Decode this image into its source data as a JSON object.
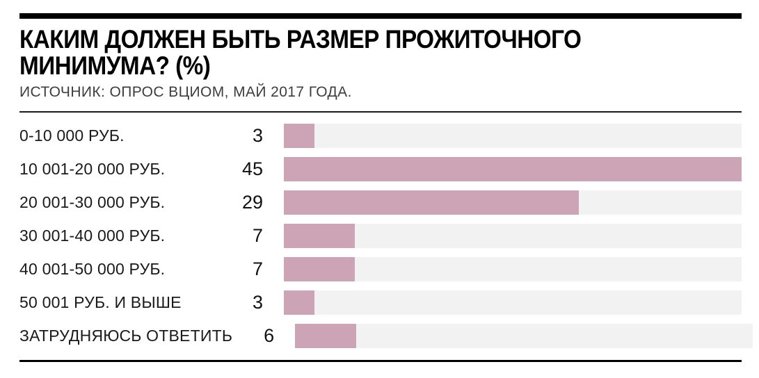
{
  "page": {
    "background": "#ffffff"
  },
  "header": {
    "title_line1": "КАКИМ ДОЛЖЕН БЫТЬ РАЗМЕР ПРОЖИТОЧНОГО",
    "title_line2": "МИНИМУМА? (%)",
    "source": "ИСТОЧНИК: ОПРОС ВЦИОМ, МАЙ 2017 ГОДА."
  },
  "chart_data": {
    "type": "bar",
    "orientation": "horizontal",
    "title": "КАКИМ ДОЛЖЕН БЫТЬ РАЗМЕР ПРОЖИТОЧНОГО МИНИМУМА? (%)",
    "subtitle": "ИСТОЧНИК: ОПРОС ВЦИОМ, МАЙ 2017 ГОДА.",
    "unit": "%",
    "categories": [
      "0-10 000 РУБ.",
      "10 001-20 000 РУБ.",
      "20 001-30 000 РУБ.",
      "30 001-40 000 РУБ.",
      "40 001-50 000 РУБ.",
      "50 001 РУБ. И ВЫШЕ",
      "ЗАТРУДНЯЮСЬ ОТВЕТИТЬ"
    ],
    "values": [
      3,
      45,
      29,
      7,
      7,
      3,
      6
    ],
    "xlim": [
      0,
      45
    ],
    "grid": false,
    "legend": false,
    "value_label_position": "left-of-bar",
    "bar_color": "#cda4b5",
    "track_color": "#f3f2f2",
    "accent_color": "#000000"
  }
}
